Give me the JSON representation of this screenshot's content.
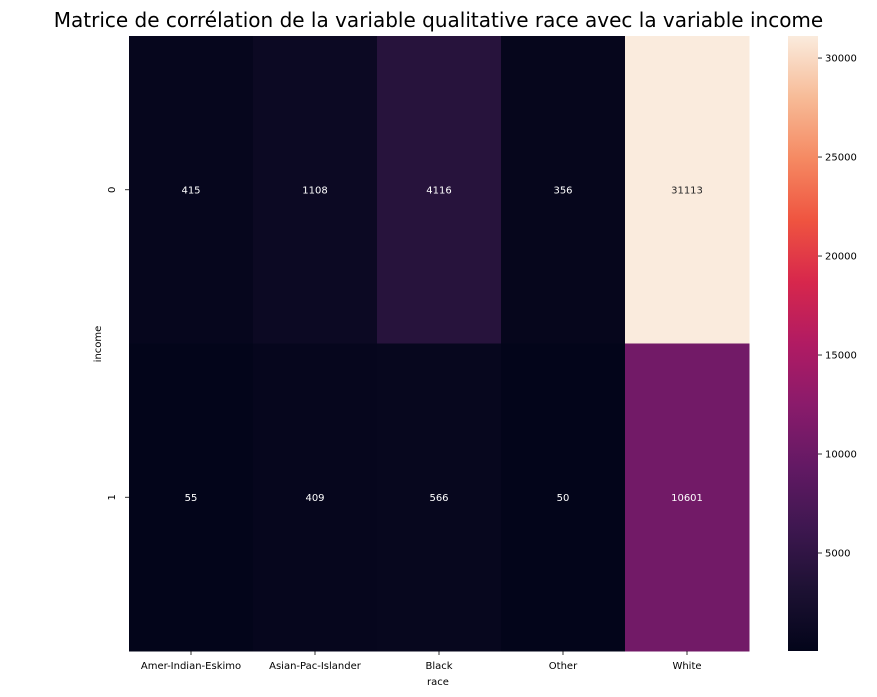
{
  "chart_data": {
    "type": "heatmap",
    "title": "Matrice de corrélation de la variable qualitative race avec la variable income",
    "xlabel": "race",
    "ylabel": "income",
    "x_categories": [
      "Amer-Indian-Eskimo",
      "Asian-Pac-Islander",
      "Black",
      "Other",
      "White"
    ],
    "y_categories": [
      "0",
      "1"
    ],
    "values": [
      [
        415,
        1108,
        4116,
        356,
        31113
      ],
      [
        55,
        409,
        566,
        50,
        10601
      ]
    ],
    "colormap": "rocket",
    "colorbar": {
      "range": [
        50,
        31113
      ],
      "ticks": [
        5000,
        10000,
        15000,
        20000,
        25000,
        30000
      ],
      "tick_labels": [
        "5000",
        "10000",
        "15000",
        "20000",
        "25000",
        "30000"
      ]
    },
    "annotations": true
  }
}
